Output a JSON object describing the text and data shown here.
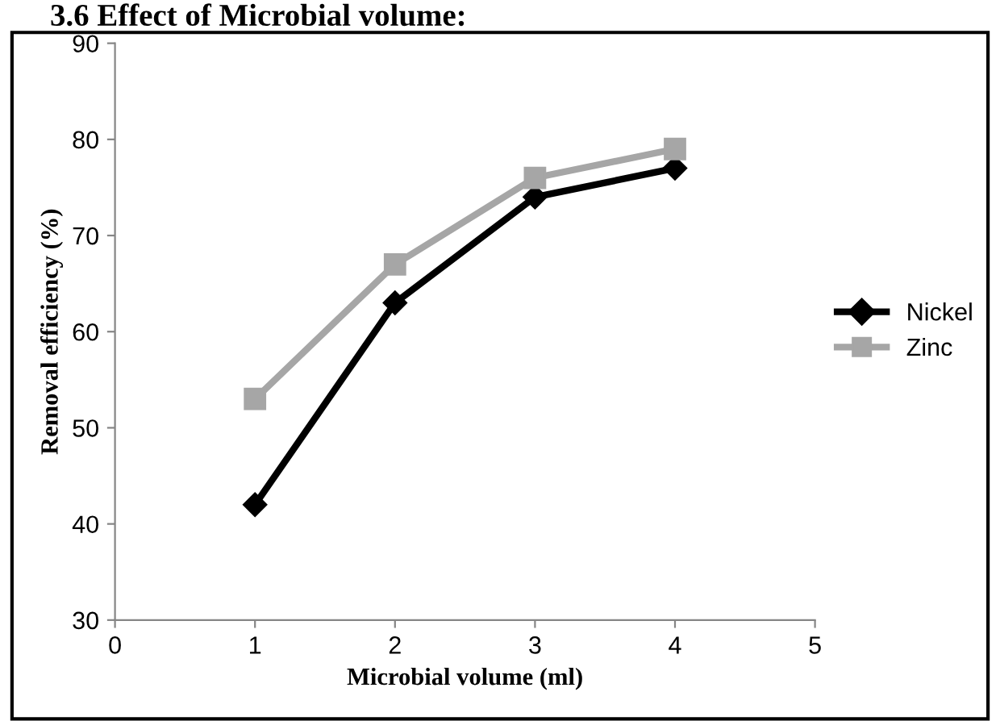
{
  "chart_data": {
    "type": "line",
    "title": "3.6 Effect of Microbial volume:",
    "xlabel": "Microbial volume (ml)",
    "ylabel": "Removal efficiency (%)",
    "x": [
      1,
      2,
      3,
      4
    ],
    "series": [
      {
        "name": "Nickel",
        "color": "#000000",
        "values": [
          42,
          63,
          74,
          77
        ],
        "marker": "diamond"
      },
      {
        "name": "Zinc",
        "color": "#a6a6a6",
        "values": [
          53,
          67,
          76,
          79
        ],
        "marker": "square"
      }
    ],
    "xlim": [
      0,
      5
    ],
    "xticks": [
      0,
      1,
      2,
      3,
      4,
      5
    ],
    "ylim": [
      30,
      90
    ],
    "yticks": [
      30,
      40,
      50,
      60,
      70,
      80,
      90
    ],
    "grid": false,
    "legend": "right",
    "line_style": "solid"
  }
}
